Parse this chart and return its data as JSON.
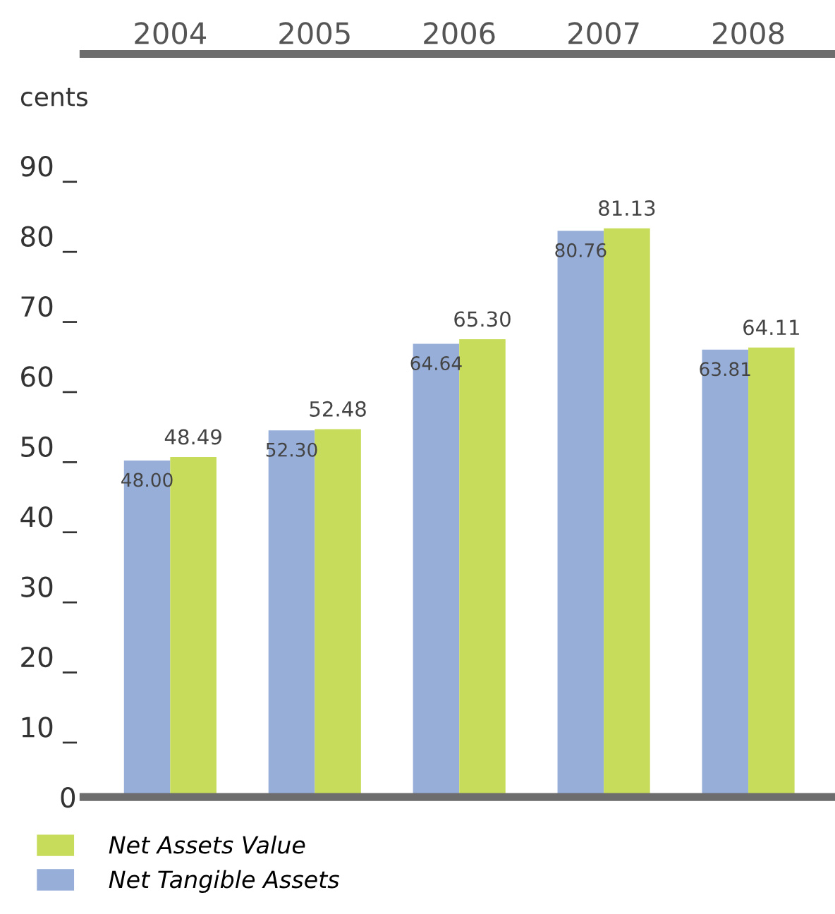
{
  "chart_data": {
    "type": "bar",
    "ylabel": "cents",
    "categories": [
      "2004",
      "2005",
      "2006",
      "2007",
      "2008"
    ],
    "series": [
      {
        "name": "Net Tangible Assets",
        "color": "#97aed9",
        "values": [
          48.0,
          52.3,
          64.64,
          80.76,
          63.81
        ],
        "value_labels": [
          "48.00",
          "52.30",
          "64.64",
          "80.76",
          "63.81"
        ]
      },
      {
        "name": "Net Assets Value",
        "color": "#c8dc5c",
        "values": [
          48.49,
          52.48,
          65.3,
          81.13,
          64.11
        ],
        "value_labels": [
          "48.49",
          "52.48",
          "65.30",
          "81.13",
          "64.11"
        ]
      }
    ],
    "ylim": [
      0,
      106
    ],
    "yticks": [
      0,
      {
        "value": 10,
        "label": "10 _"
      },
      {
        "value": 20,
        "label": "20 _"
      },
      {
        "value": 30,
        "label": "30 _"
      },
      {
        "value": 40,
        "label": "40 _"
      },
      {
        "value": 50,
        "label": "50 _"
      },
      {
        "value": 60,
        "label": "60 _"
      },
      {
        "value": 70,
        "label": "70 _"
      },
      {
        "value": 80,
        "label": "80 _"
      },
      {
        "value": 90,
        "label": "90 _"
      }
    ],
    "grid": false,
    "legend": "bottom left"
  }
}
